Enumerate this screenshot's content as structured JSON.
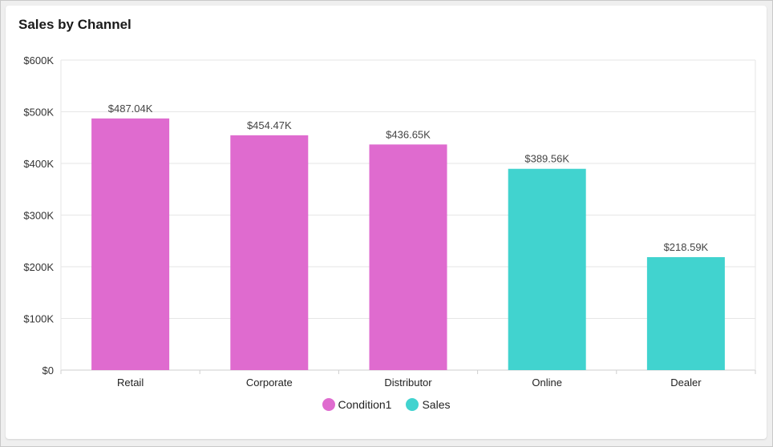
{
  "chart_data": {
    "type": "bar",
    "title": "Sales by Channel",
    "categories": [
      "Retail",
      "Corporate",
      "Distributor",
      "Online",
      "Dealer"
    ],
    "values": [
      487040,
      454470,
      436650,
      389560,
      218590
    ],
    "data_labels": [
      "$487.04K",
      "$454.47K",
      "$436.65K",
      "$389.56K",
      "$218.59K"
    ],
    "groups": [
      "Condition1",
      "Condition1",
      "Condition1",
      "Sales",
      "Sales"
    ],
    "y_ticks": [
      "$0",
      "$100K",
      "$200K",
      "$300K",
      "$400K",
      "$500K",
      "$600K"
    ],
    "ylim": [
      0,
      600000
    ],
    "grid": true,
    "legend": {
      "placement": "bottom",
      "items": [
        {
          "name": "Condition1",
          "color": "#df6bcf"
        },
        {
          "name": "Sales",
          "color": "#41d3cf"
        }
      ]
    }
  }
}
